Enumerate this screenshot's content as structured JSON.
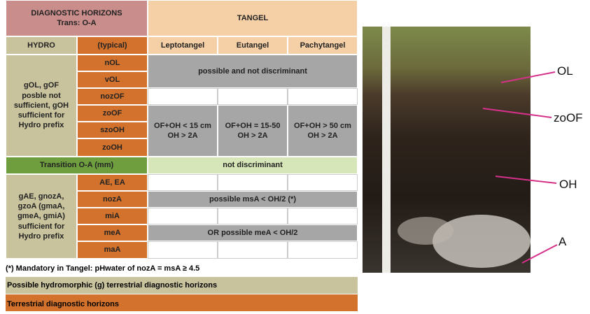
{
  "table": {
    "header": {
      "diagnostic": "DIAGNOSTIC HORIZONS",
      "trans": "Trans: O-A",
      "tangel": "TANGEL"
    },
    "subheader": [
      "HYDRO",
      "(typical)",
      "Leptotangel",
      "Eutangel",
      "Pachytangel"
    ],
    "o_group": {
      "label": "gOL, gOF posble not sufficient, gOH sufficient for Hydro prefix",
      "horizons": [
        "nOL",
        "vOL",
        "nozOF",
        "zoOF",
        "szoOH",
        "zoOH"
      ],
      "ol_note": "possible and not discriminant",
      "of_oh": [
        [
          "OF+OH < 15 cm",
          "OH > 2A"
        ],
        [
          "OF+OH = 15-50",
          "OH > 2A"
        ],
        [
          "OF+OH > 50 cm",
          "OH > 2A"
        ]
      ]
    },
    "transition": {
      "label": "Transition O-A (mm)",
      "note": "not discriminant"
    },
    "a_group": {
      "label": "gAE, gnozA, gzoA (gmaA, gmeA, gmiA) sufficient for Hydro prefix",
      "horizons": [
        "AE, EA",
        "nozA",
        "miA",
        "meA",
        "maA"
      ],
      "noza_note": "possible msA < OH/2 (*)",
      "mea_note": "OR possible meA < OH/2"
    },
    "footnote": "(*) Mandatory in Tangel: pHwater of nozA = msA ≥ 4.5",
    "legend": [
      "Possible hydromorphic (g) terrestrial diagnostic horizons",
      "Terrestrial diagnostic horizons"
    ]
  },
  "photo": {
    "labels": [
      "OL",
      "zoOF",
      "OH",
      "A"
    ]
  }
}
